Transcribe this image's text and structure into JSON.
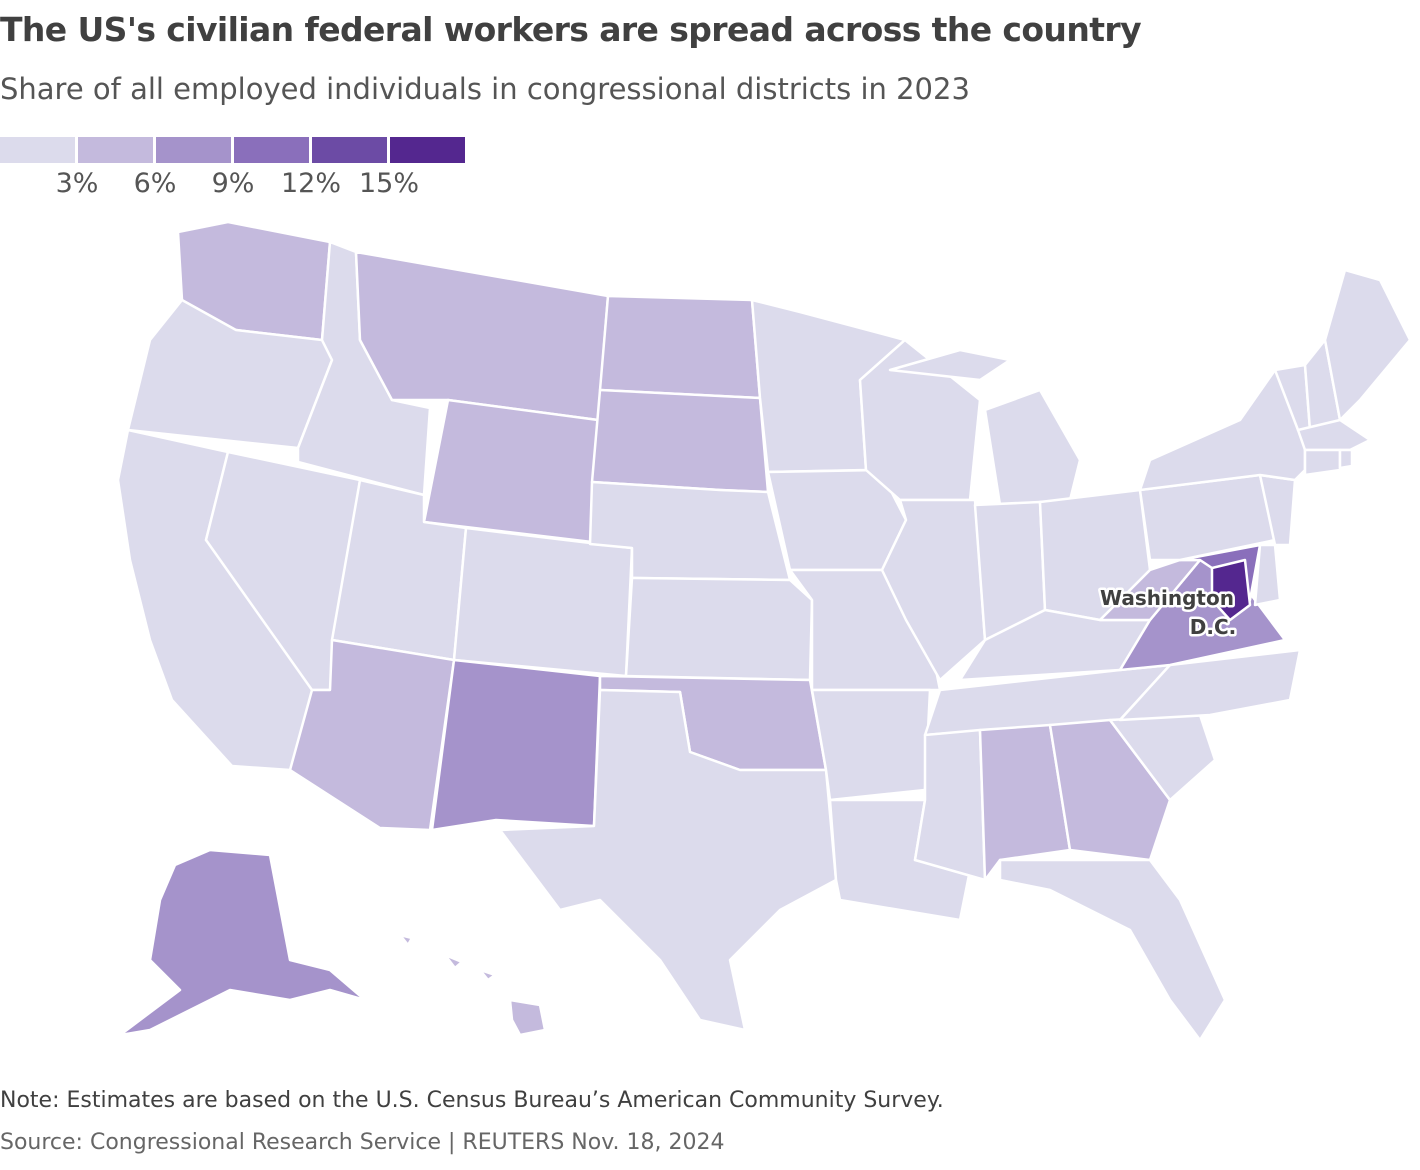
{
  "title": "The US's civilian federal workers are spread across the country",
  "subtitle": "Share of all employed individuals in congressional districts in 2023",
  "legend": {
    "bins": [
      "#dcdbec",
      "#c4badd",
      "#a593cb",
      "#8a6fbb",
      "#6c4ba5",
      "#54278f"
    ],
    "ticks": [
      "3%",
      "6%",
      "9%",
      "12%",
      "15%"
    ]
  },
  "annotation": {
    "dc_line1": "Washington",
    "dc_line2": "D.C."
  },
  "note": "Note: Estimates are based on the U.S. Census Bureau’s American Community Survey.",
  "source": "Source: Congressional Research Service | REUTERS Nov. 18, 2024",
  "chart_data": {
    "type": "choropleth",
    "geography": "U.S. congressional districts",
    "year": 2023,
    "measure": "Share of all employed individuals",
    "bin_thresholds_percent": [
      3,
      6,
      9,
      12,
      15
    ],
    "bin_colors": [
      "#dcdbec",
      "#c4badd",
      "#a593cb",
      "#8a6fbb",
      "#6c4ba5",
      "#54278f"
    ],
    "regions": [
      {
        "name": "Washington",
        "bin": 1
      },
      {
        "name": "Oregon",
        "bin": 0
      },
      {
        "name": "California",
        "bin": 0
      },
      {
        "name": "Nevada",
        "bin": 0
      },
      {
        "name": "Idaho",
        "bin": 0
      },
      {
        "name": "Montana",
        "bin": 1
      },
      {
        "name": "Wyoming",
        "bin": 1
      },
      {
        "name": "Utah",
        "bin": 0
      },
      {
        "name": "Arizona",
        "bin": 1
      },
      {
        "name": "Colorado",
        "bin": 0
      },
      {
        "name": "New Mexico",
        "bin": 2
      },
      {
        "name": "North Dakota",
        "bin": 1
      },
      {
        "name": "South Dakota",
        "bin": 1
      },
      {
        "name": "Nebraska",
        "bin": 0
      },
      {
        "name": "Kansas",
        "bin": 0
      },
      {
        "name": "Oklahoma",
        "bin": 1
      },
      {
        "name": "Texas",
        "bin": 0
      },
      {
        "name": "Minnesota",
        "bin": 0
      },
      {
        "name": "Iowa",
        "bin": 0
      },
      {
        "name": "Missouri",
        "bin": 0
      },
      {
        "name": "Arkansas",
        "bin": 0
      },
      {
        "name": "Louisiana",
        "bin": 0
      },
      {
        "name": "Wisconsin",
        "bin": 0
      },
      {
        "name": "Illinois",
        "bin": 0
      },
      {
        "name": "Michigan",
        "bin": 0
      },
      {
        "name": "Indiana",
        "bin": 0
      },
      {
        "name": "Ohio",
        "bin": 0
      },
      {
        "name": "Kentucky",
        "bin": 0
      },
      {
        "name": "Tennessee",
        "bin": 0
      },
      {
        "name": "Mississippi",
        "bin": 0
      },
      {
        "name": "Alabama",
        "bin": 1
      },
      {
        "name": "Georgia",
        "bin": 1
      },
      {
        "name": "Florida",
        "bin": 0
      },
      {
        "name": "South Carolina",
        "bin": 0
      },
      {
        "name": "North Carolina",
        "bin": 0
      },
      {
        "name": "Virginia",
        "bin": 2
      },
      {
        "name": "West Virginia",
        "bin": 1
      },
      {
        "name": "Maryland",
        "bin": 3
      },
      {
        "name": "Delaware",
        "bin": 0
      },
      {
        "name": "Pennsylvania",
        "bin": 0
      },
      {
        "name": "New Jersey",
        "bin": 0
      },
      {
        "name": "New York",
        "bin": 0
      },
      {
        "name": "Vermont",
        "bin": 0
      },
      {
        "name": "New Hampshire",
        "bin": 0
      },
      {
        "name": "Maine",
        "bin": 0
      },
      {
        "name": "Massachusetts",
        "bin": 0
      },
      {
        "name": "Connecticut",
        "bin": 0
      },
      {
        "name": "Rhode Island",
        "bin": 0
      },
      {
        "name": "Alaska",
        "bin": 2
      },
      {
        "name": "Hawaii",
        "bin": 1
      },
      {
        "name": "Washington D.C. area",
        "bin": 5
      }
    ]
  }
}
